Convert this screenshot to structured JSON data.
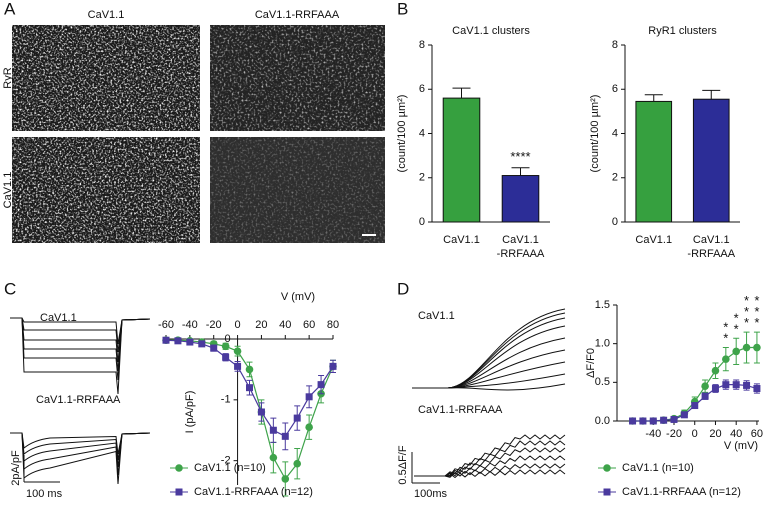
{
  "panel_labels": [
    "A",
    "B",
    "C",
    "D"
  ],
  "panel_a": {
    "columns": [
      "CaV1.1",
      "CaV1.1-RRFAAA"
    ],
    "rows": [
      "RyR",
      "CaV1.1"
    ]
  },
  "panel_c_traces": {
    "labels": [
      "CaV1.1",
      "CaV1.1-RRFAAA"
    ],
    "scale_y": "2pA/pF",
    "scale_x": "100 ms"
  },
  "panel_d_traces": {
    "labels": [
      "CaV1.1",
      "CaV1.1-RRFAAA"
    ],
    "scale_y": "0.5ΔF/F",
    "scale_x": "100ms"
  },
  "chart_data": [
    {
      "type": "bar",
      "title": "CaV1.1 clusters",
      "y_label": "(count/100 µm²)",
      "categories": [
        "CaV1.1",
        "CaV1.1 -RRFAAA"
      ],
      "values": [
        5.6,
        2.1
      ],
      "errors": [
        0.45,
        0.35
      ],
      "colors": [
        "#36a03f",
        "#2c2d97"
      ],
      "value_annotations": [
        null,
        "****"
      ],
      "ylim": [
        0,
        8
      ],
      "yticks": [
        0,
        2,
        4,
        6,
        8
      ]
    },
    {
      "type": "bar",
      "title": "RyR1 clusters",
      "y_label": "(count/100 µm²)",
      "categories": [
        "CaV1.1",
        "CaV1.1 -RRFAAA"
      ],
      "values": [
        5.45,
        5.55
      ],
      "errors": [
        0.3,
        0.4
      ],
      "colors": [
        "#36a03f",
        "#2c2d97"
      ],
      "ylim": [
        0,
        8
      ],
      "yticks": [
        0,
        2,
        4,
        6,
        8
      ]
    },
    {
      "type": "line",
      "x_label": "V (mV)",
      "y_label": "I (pA/pF)",
      "x": [
        -60,
        -50,
        -40,
        -30,
        -20,
        -10,
        0,
        10,
        20,
        30,
        40,
        50,
        60,
        70,
        80
      ],
      "series": [
        {
          "name": "CaV1.1 (n=10)",
          "color": "#3ea34a",
          "marker": "circle",
          "values": [
            -0.02,
            -0.02,
            -0.03,
            -0.05,
            -0.08,
            -0.12,
            -0.2,
            -0.5,
            -1.2,
            -1.95,
            -2.3,
            -2.05,
            -1.45,
            -0.9,
            -0.45
          ],
          "errors": [
            0.02,
            0.02,
            0.02,
            0.03,
            0.04,
            0.05,
            0.08,
            0.12,
            0.2,
            0.25,
            0.28,
            0.25,
            0.2,
            0.15,
            0.1
          ]
        },
        {
          "name": "CaV1.1-RRFAAA (n=12)",
          "color": "#4a3a9e",
          "marker": "square",
          "values": [
            -0.02,
            -0.03,
            -0.05,
            -0.08,
            -0.15,
            -0.3,
            -0.45,
            -0.8,
            -1.2,
            -1.5,
            -1.6,
            -1.3,
            -0.95,
            -0.75,
            -0.45
          ],
          "errors": [
            0.02,
            0.02,
            0.03,
            0.04,
            0.05,
            0.06,
            0.08,
            0.12,
            0.15,
            0.2,
            0.22,
            0.2,
            0.18,
            0.15,
            0.1
          ]
        }
      ],
      "xlim": [
        -60,
        80
      ],
      "ylim": [
        -2.4,
        0
      ],
      "xticks": [
        -60,
        -40,
        -20,
        0,
        20,
        40,
        60,
        80
      ],
      "yticks": [
        -2,
        -1,
        0
      ],
      "axes_cross_at_zero": true
    },
    {
      "type": "line",
      "x_label": "V (mV)",
      "y_label": "ΔF/F0",
      "x": [
        -60,
        -50,
        -40,
        -30,
        -20,
        -10,
        0,
        10,
        20,
        30,
        40,
        50,
        60
      ],
      "series": [
        {
          "name": "CaV1.1 (n=10)",
          "color": "#3ea34a",
          "marker": "circle",
          "values": [
            0,
            0,
            0,
            0.01,
            0.03,
            0.1,
            0.25,
            0.45,
            0.65,
            0.8,
            0.9,
            0.95,
            0.95
          ],
          "errors": [
            0.01,
            0.01,
            0.01,
            0.01,
            0.02,
            0.04,
            0.06,
            0.08,
            0.1,
            0.15,
            0.17,
            0.2,
            0.2
          ]
        },
        {
          "name": "CaV1.1-RRFAAA (n=12)",
          "color": "#4a3a9e",
          "marker": "square",
          "values": [
            0,
            0,
            0,
            0.01,
            0.02,
            0.08,
            0.2,
            0.32,
            0.42,
            0.47,
            0.47,
            0.46,
            0.42
          ],
          "errors": [
            0.01,
            0.01,
            0.01,
            0.01,
            0.01,
            0.02,
            0.03,
            0.04,
            0.05,
            0.06,
            0.06,
            0.06,
            0.06
          ]
        }
      ],
      "xlim": [
        -75,
        62
      ],
      "ylim": [
        0,
        1.5
      ],
      "xticks": [
        -40,
        -20,
        0,
        20,
        40,
        60
      ],
      "yticks": [
        {
          "value": 0,
          "label": "0.0"
        },
        0.5,
        {
          "value": 1,
          "label": "1.0"
        },
        1.5
      ],
      "annotations": [
        {
          "x": 30,
          "label": "**"
        },
        {
          "x": 40,
          "label": "**"
        },
        {
          "x": 50,
          "label": "***"
        },
        {
          "x": 60,
          "label": "***"
        }
      ]
    }
  ]
}
